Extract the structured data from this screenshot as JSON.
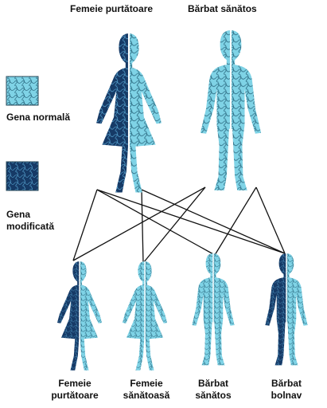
{
  "colors": {
    "normal_fill": "#7fd3e6",
    "normal_vein": "#2f6f86",
    "modified_fill": "#163a66",
    "modified_vein": "#5aa9d6",
    "line": "#111111"
  },
  "parents": {
    "mother_label": "Femeie purtătoare",
    "father_label": "Bărbat sănătos"
  },
  "legend": {
    "normal_label": "Gena normală",
    "modified_label_1": "Gena",
    "modified_label_2": "modificată",
    "normal_icon": "normal-gene-texture",
    "modified_icon": "modified-gene-texture"
  },
  "children": [
    {
      "line1": "Femeie",
      "line2": "purtătoare"
    },
    {
      "line1": "Femeie",
      "line2": "sănătoasă"
    },
    {
      "line1": "Bărbat",
      "line2": "sănătos"
    },
    {
      "line1": "Bărbat",
      "line2": "bolnav"
    }
  ]
}
